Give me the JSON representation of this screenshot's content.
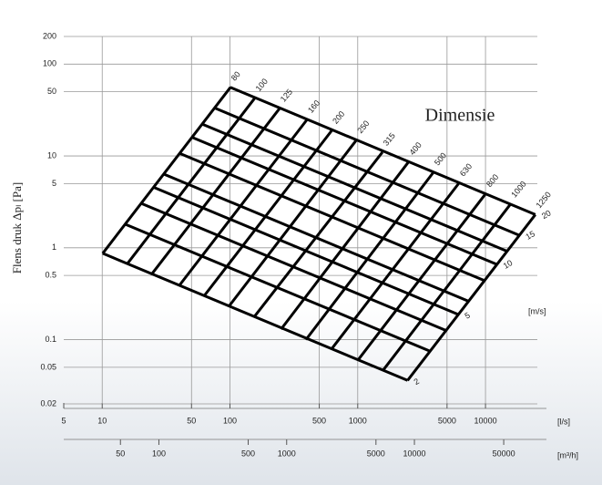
{
  "chart_data": {
    "type": "nomogram",
    "title": "Dimensie",
    "y_label": "Flens druk Δpₗ [Pa]",
    "x_unit": "[l/s]",
    "x2_unit": "[m³/h]",
    "velocity_unit": "[m/s]",
    "log_x": true,
    "log_y": true,
    "grid": true,
    "color": "#000000",
    "xlim": [
      5,
      30000
    ],
    "xticks": [
      5,
      10,
      50,
      100,
      500,
      1000,
      5000,
      10000
    ],
    "x2lim": [
      18,
      108000
    ],
    "x2ticks": [
      50,
      100,
      500,
      1000,
      5000,
      10000,
      50000
    ],
    "ylim": [
      0.02,
      200
    ],
    "yticks": [
      200,
      100,
      50,
      10,
      5,
      1,
      0.5,
      0.1,
      0.05,
      0.02
    ],
    "diameter_lines": [
      {
        "name": "80",
        "x": [
          10.1,
          101
        ],
        "values": [
          0.87,
          56
        ]
      },
      {
        "name": "100",
        "x": [
          15.7,
          157
        ],
        "values": [
          0.67,
          43
        ]
      },
      {
        "name": "125",
        "x": [
          24.5,
          245
        ],
        "values": [
          0.52,
          33
        ]
      },
      {
        "name": "160",
        "x": [
          40.2,
          402
        ],
        "values": [
          0.39,
          25
        ]
      },
      {
        "name": "200",
        "x": [
          62.8,
          628
        ],
        "values": [
          0.3,
          19
        ]
      },
      {
        "name": "250",
        "x": [
          98,
          980
        ],
        "values": [
          0.23,
          15
        ]
      },
      {
        "name": "315",
        "x": [
          156,
          1560
        ],
        "values": [
          0.18,
          11
        ]
      },
      {
        "name": "400",
        "x": [
          251,
          2510
        ],
        "values": [
          0.13,
          8.7
        ]
      },
      {
        "name": "500",
        "x": [
          393,
          3930
        ],
        "values": [
          0.1,
          6.7
        ]
      },
      {
        "name": "630",
        "x": [
          623,
          6230
        ],
        "values": [
          0.079,
          5.1
        ]
      },
      {
        "name": "800",
        "x": [
          1005,
          10050
        ],
        "values": [
          0.06,
          3.9
        ]
      },
      {
        "name": "1000",
        "x": [
          1571,
          15710
        ],
        "values": [
          0.046,
          3.0
        ]
      },
      {
        "name": "1250",
        "x": [
          2454,
          24540
        ],
        "values": [
          0.036,
          2.3
        ]
      }
    ],
    "velocity_lines": [
      {
        "name": "2",
        "x": [
          10.1,
          2454
        ],
        "values": [
          0.87,
          0.036
        ]
      },
      {
        "name": null,
        "x": [
          15.1,
          3682
        ],
        "values": [
          1.81,
          0.075
        ]
      },
      {
        "name": null,
        "x": [
          20.1,
          4909
        ],
        "values": [
          3.05,
          0.126
        ]
      },
      {
        "name": "5",
        "x": [
          25.1,
          6136
        ],
        "values": [
          4.57,
          0.188
        ]
      },
      {
        "name": null,
        "x": [
          30.2,
          7363
        ],
        "values": [
          6.35,
          0.262
        ]
      },
      {
        "name": null,
        "x": [
          40.2,
          9817
        ],
        "values": [
          10.7,
          0.44
        ]
      },
      {
        "name": "10",
        "x": [
          50.3,
          12272
        ],
        "values": [
          16.0,
          0.66
        ]
      },
      {
        "name": null,
        "x": [
          60.3,
          14726
        ],
        "values": [
          22.3,
          0.92
        ]
      },
      {
        "name": "15",
        "x": [
          75.4,
          18408
        ],
        "values": [
          33.4,
          1.37
        ]
      },
      {
        "name": "20",
        "x": [
          100.5,
          24544
        ],
        "values": [
          56,
          2.3
        ]
      }
    ]
  }
}
